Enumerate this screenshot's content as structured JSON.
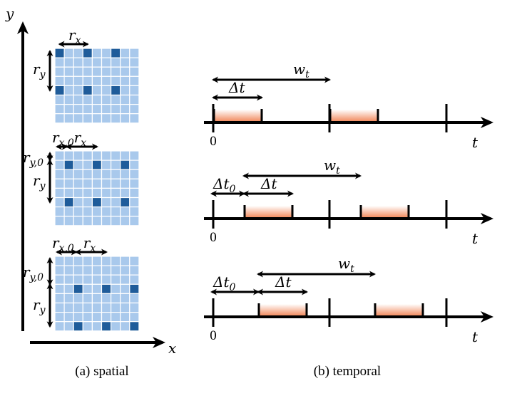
{
  "axes": {
    "y_label": "y",
    "x_label": "x",
    "t_label": "t",
    "zero_label": "0"
  },
  "captions": {
    "spatial": "(a) spatial",
    "temporal": "(b) temporal"
  },
  "colors": {
    "cell_light": "#a9c9ec",
    "cell_dark": "#1f5c9a",
    "grid_line": "#ffffff",
    "window_fill": "#f08050"
  },
  "spatial": {
    "cols": 9,
    "rows": 8,
    "period_cols": 3,
    "period_rows": 4,
    "grids": [
      {
        "offset_col": 0,
        "offset_row": 0,
        "labels": {
          "rx": "r",
          "rx_sub": "x",
          "ry": "r",
          "ry_sub": "y"
        }
      },
      {
        "offset_col": 1,
        "offset_row": 1,
        "labels": {
          "rx0": "r",
          "rx0_sub": "x,0",
          "rx": "r",
          "rx_sub": "x",
          "ry0": "r",
          "ry0_sub": "y,0",
          "ry": "r",
          "ry_sub": "y"
        }
      },
      {
        "offset_col": 2,
        "offset_row": 3,
        "labels": {
          "rx0": "r",
          "rx0_sub": "x,0",
          "rx": "r",
          "rx_sub": "x",
          "ry0": "r",
          "ry0_sub": "y,0",
          "ry": "r",
          "ry_sub": "y"
        }
      }
    ]
  },
  "temporal": {
    "rows": [
      {
        "wt": "w",
        "wt_sub": "t",
        "dt": "Δt",
        "dt0": null,
        "dt0_sub": null
      },
      {
        "wt": "w",
        "wt_sub": "t",
        "dt": "Δt",
        "dt0": "Δt",
        "dt0_sub": "0"
      },
      {
        "wt": "w",
        "wt_sub": "t",
        "dt": "Δt",
        "dt0": "Δt",
        "dt0_sub": "0"
      }
    ]
  }
}
